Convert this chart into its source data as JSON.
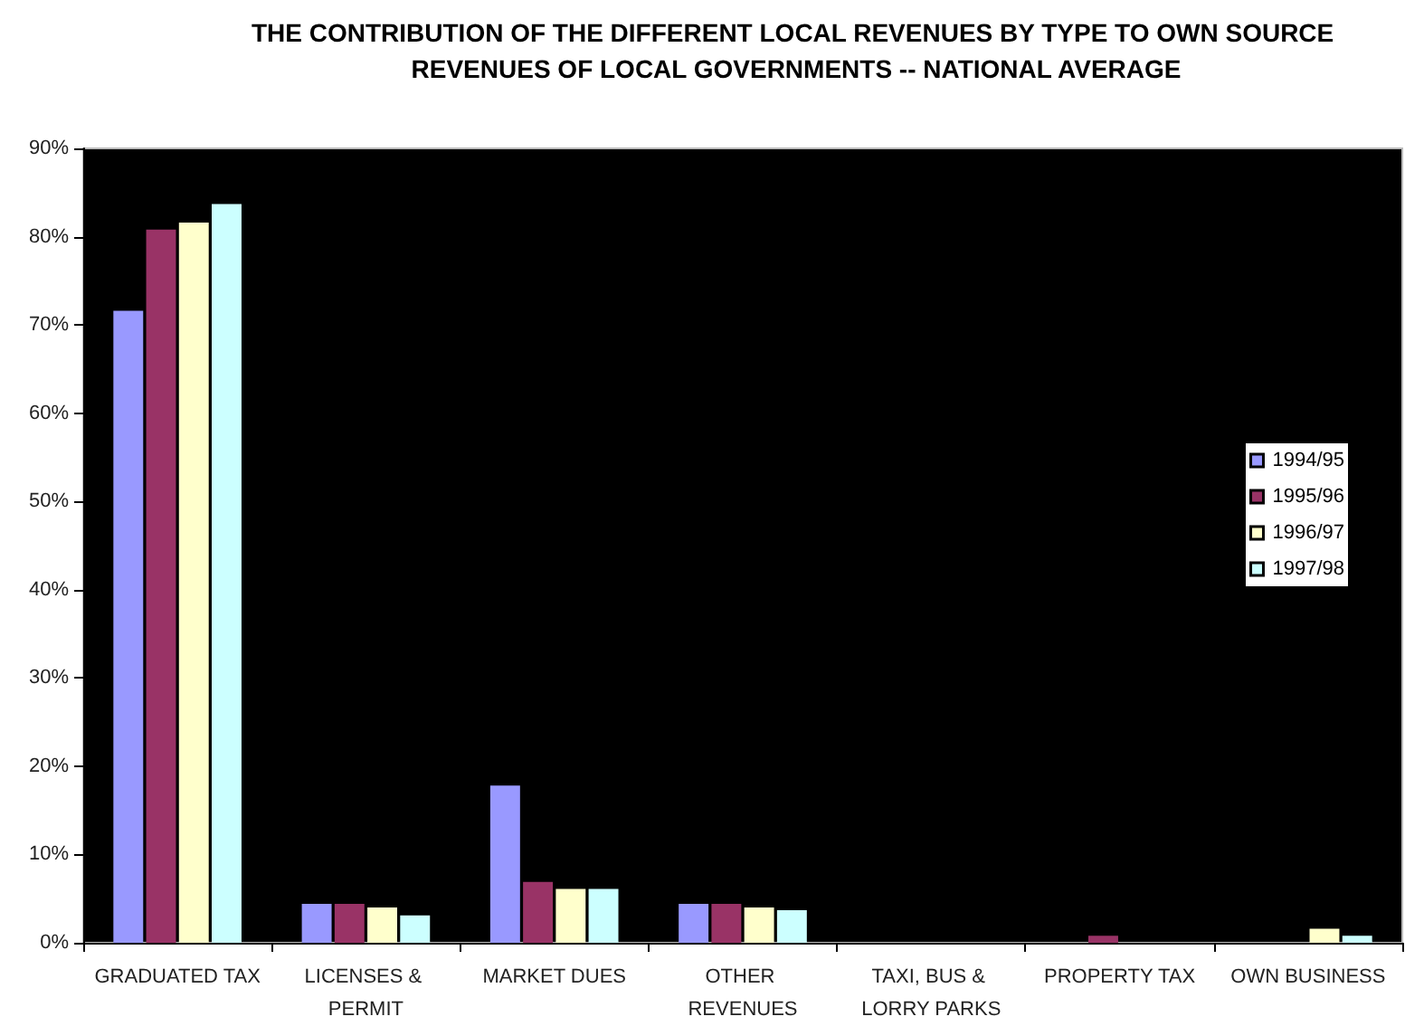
{
  "chart_data": {
    "type": "bar",
    "title": "THE CONTRIBUTION OF THE DIFFERENT LOCAL REVENUES BY TYPE TO OWN SOURCE REVENUES OF LOCAL GOVERNMENTS -- NATIONAL AVERAGE",
    "categories": [
      "GRADUATED TAX",
      "LICENSES & PERMIT",
      "MARKET DUES",
      "OTHER REVENUES",
      "TAXI, BUS & LORRY PARKS",
      "PROPERTY TAX",
      "OWN BUSINESS"
    ],
    "series": [
      {
        "name": "1994/95",
        "color": "#9999ff",
        "values": [
          71.6,
          4.4,
          17.8,
          4.4,
          0,
          0,
          0
        ]
      },
      {
        "name": "1995/96",
        "color": "#993366",
        "values": [
          80.8,
          4.4,
          6.9,
          4.4,
          0,
          0.8,
          0
        ]
      },
      {
        "name": "1996/97",
        "color": "#ffffcc",
        "values": [
          81.6,
          4.0,
          6.1,
          4.0,
          0,
          0,
          1.6
        ]
      },
      {
        "name": "1997/98",
        "color": "#ccffff",
        "values": [
          83.7,
          3.1,
          6.1,
          3.7,
          0,
          0,
          0.8
        ]
      }
    ],
    "ylim": [
      0,
      90
    ],
    "yticks": [
      {
        "value": 0,
        "label": "0%"
      },
      {
        "value": 10,
        "label": "10%"
      },
      {
        "value": 20,
        "label": "20%"
      },
      {
        "value": 30,
        "label": "30%"
      },
      {
        "value": 40,
        "label": "40%"
      },
      {
        "value": 50,
        "label": "50%"
      },
      {
        "value": 60,
        "label": "60%"
      },
      {
        "value": 70,
        "label": "70%"
      },
      {
        "value": 80,
        "label": "80%"
      },
      {
        "value": 90,
        "label": "90%"
      }
    ],
    "grid": false,
    "legend": "right"
  }
}
